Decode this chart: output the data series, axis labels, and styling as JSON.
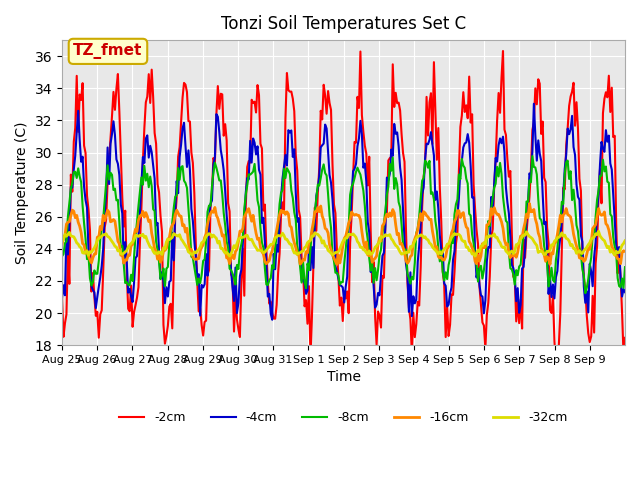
{
  "title": "Tonzi Soil Temperatures Set C",
  "xlabel": "Time",
  "ylabel": "Soil Temperature (C)",
  "ylim": [
    18,
    37
  ],
  "yticks": [
    18,
    20,
    22,
    24,
    26,
    28,
    30,
    32,
    34,
    36
  ],
  "annotation_text": "TZ_fmet",
  "annotation_bg": "#FFFFCC",
  "annotation_border": "#CCAA00",
  "plot_bg": "#E8E8E8",
  "series": {
    "-2cm": {
      "color": "#FF0000",
      "linewidth": 1.5,
      "amplitude": 7.5,
      "mean": 26.5,
      "phase": 0.0
    },
    "-4cm": {
      "color": "#0000CC",
      "linewidth": 1.5,
      "amplitude": 5.0,
      "mean": 26.0,
      "phase": 0.3
    },
    "-8cm": {
      "color": "#00BB00",
      "linewidth": 1.5,
      "amplitude": 3.5,
      "mean": 25.5,
      "phase": 0.7
    },
    "-16cm": {
      "color": "#FF8800",
      "linewidth": 2.0,
      "amplitude": 1.5,
      "mean": 24.8,
      "phase": 1.2
    },
    "-32cm": {
      "color": "#DDDD00",
      "linewidth": 2.0,
      "amplitude": 0.6,
      "mean": 24.3,
      "phase": 1.8
    }
  },
  "xtick_labels": [
    "Aug 25",
    "Aug 26",
    "Aug 27",
    "Aug 28",
    "Aug 29",
    "Aug 30",
    "Aug 31",
    "Sep 1",
    "Sep 2",
    "Sep 3",
    "Sep 4",
    "Sep 5",
    "Sep 6",
    "Sep 7",
    "Sep 8",
    "Sep 9"
  ],
  "legend_items": [
    "-2cm",
    "-4cm",
    "-8cm",
    "-16cm",
    "-32cm"
  ],
  "legend_colors": [
    "#FF0000",
    "#0000CC",
    "#00BB00",
    "#FF8800",
    "#DDDD00"
  ]
}
